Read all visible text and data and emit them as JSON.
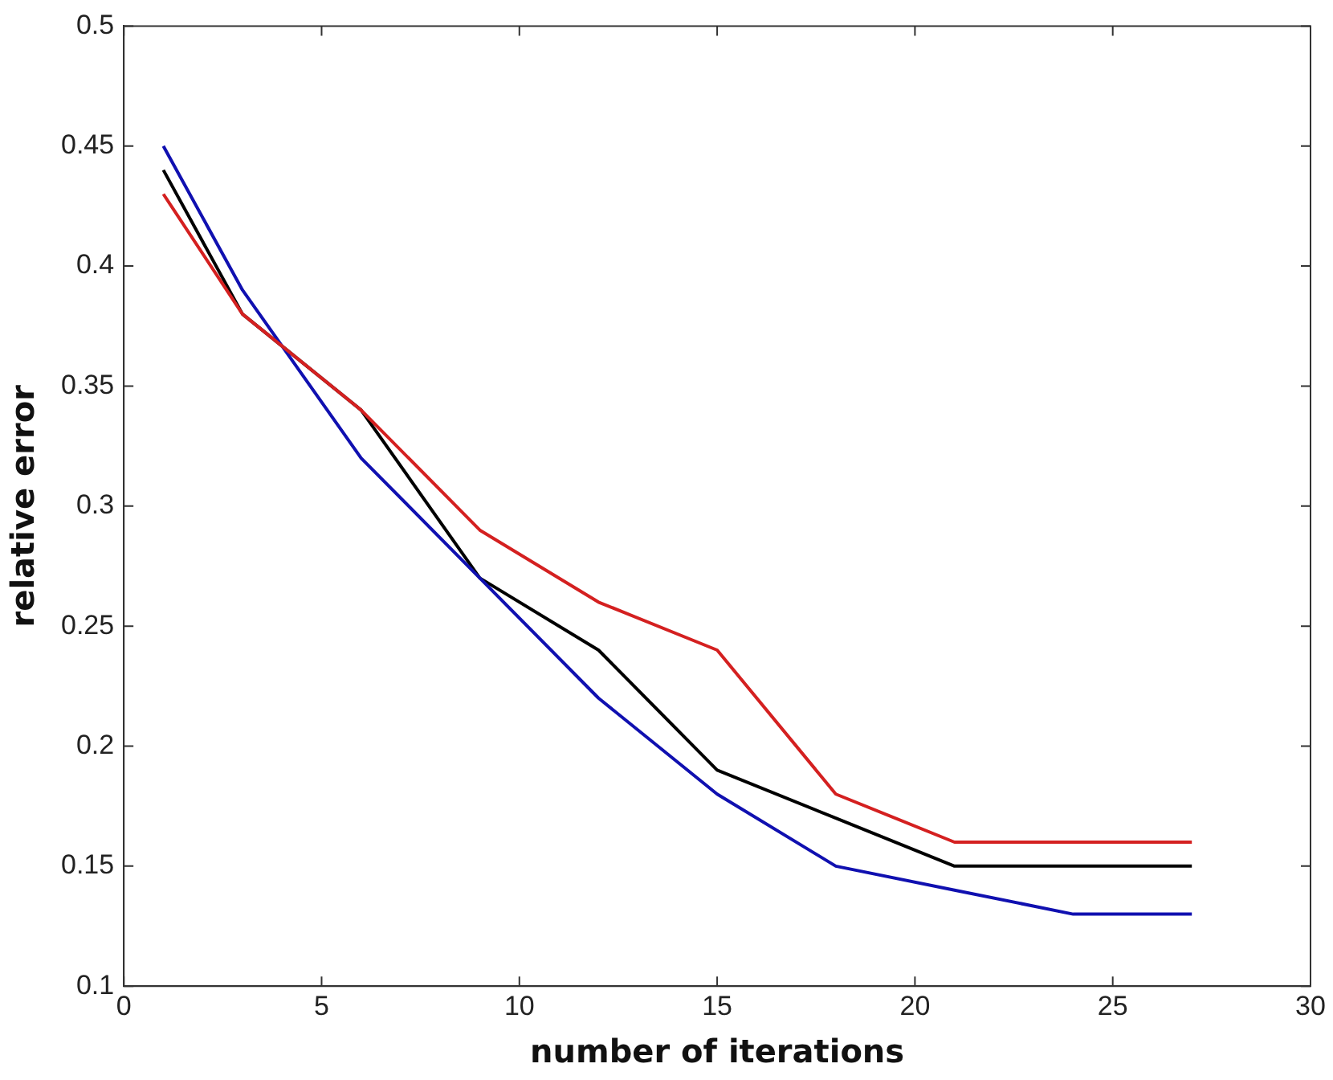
{
  "chart_data": {
    "type": "line",
    "xlabel": "number of iterations",
    "ylabel": "relative error",
    "x": [
      1,
      3,
      6,
      9,
      12,
      15,
      18,
      21,
      24,
      27
    ],
    "series": [
      {
        "color": "#d42020",
        "values": [
          0.43,
          0.38,
          0.34,
          0.29,
          0.26,
          0.24,
          0.18,
          0.16,
          0.16,
          0.16
        ]
      },
      {
        "color": "#1010b0",
        "values": [
          0.45,
          0.39,
          0.32,
          0.27,
          0.22,
          0.18,
          0.15,
          0.14,
          0.13,
          0.13
        ]
      },
      {
        "color": "#000000",
        "values": [
          0.44,
          0.38,
          0.34,
          0.27,
          0.24,
          0.19,
          0.17,
          0.15,
          0.15,
          0.15
        ]
      }
    ],
    "xlim": [
      0,
      30
    ],
    "xticks": [
      0,
      5,
      10,
      15,
      20,
      25,
      30
    ],
    "ylim": [
      0.1,
      0.5
    ],
    "yticks": [
      0.1,
      0.15,
      0.2,
      0.25,
      0.3,
      0.35,
      0.4,
      0.45,
      0.5
    ],
    "grid": false,
    "legend": false,
    "marker": "none",
    "line_style": "solid"
  }
}
